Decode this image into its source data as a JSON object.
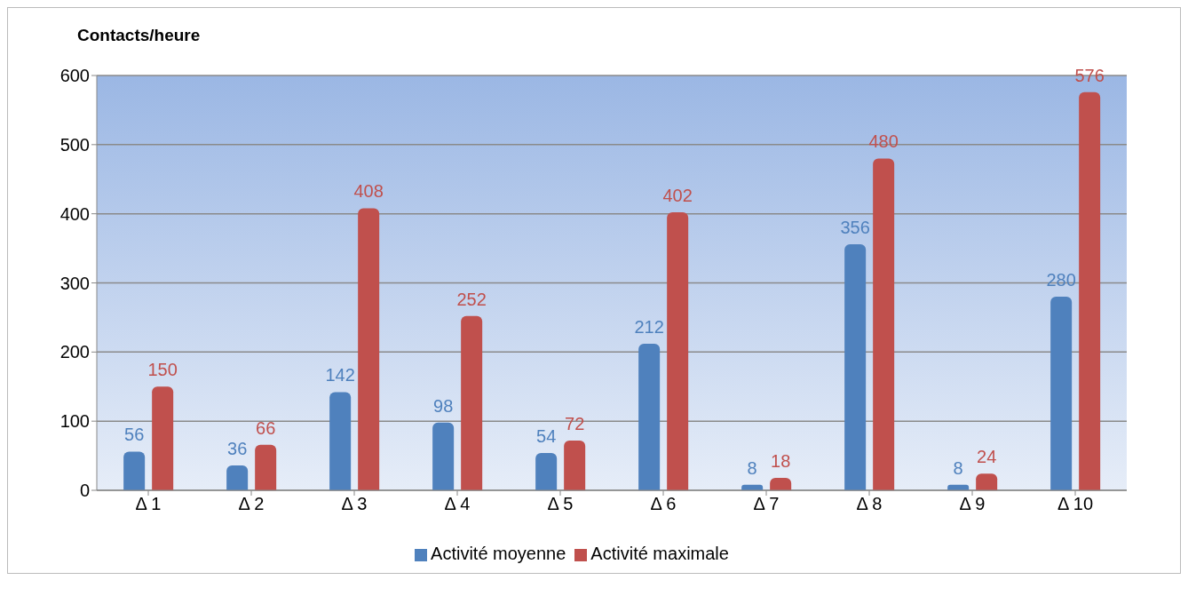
{
  "chart_data": {
    "type": "bar",
    "ylabel": "Contacts/heure",
    "categories": [
      "Δ 1",
      "Δ 2",
      "Δ 3",
      "Δ 4",
      "Δ 5",
      "Δ 6",
      "Δ 7",
      "Δ 8",
      "Δ 9",
      "Δ 10"
    ],
    "series": [
      {
        "name": "Activité moyenne",
        "color": "#4f81bd",
        "values": [
          56,
          36,
          142,
          98,
          54,
          212,
          8,
          356,
          8,
          280
        ]
      },
      {
        "name": "Activité maximale",
        "color": "#c0504d",
        "values": [
          150,
          66,
          408,
          252,
          72,
          402,
          18,
          480,
          24,
          576
        ]
      }
    ],
    "ylim": [
      0,
      600
    ],
    "yticks": [
      0,
      100,
      200,
      300,
      400,
      500,
      600
    ],
    "grid": "y",
    "legend": "bottom",
    "data_labels": true
  }
}
